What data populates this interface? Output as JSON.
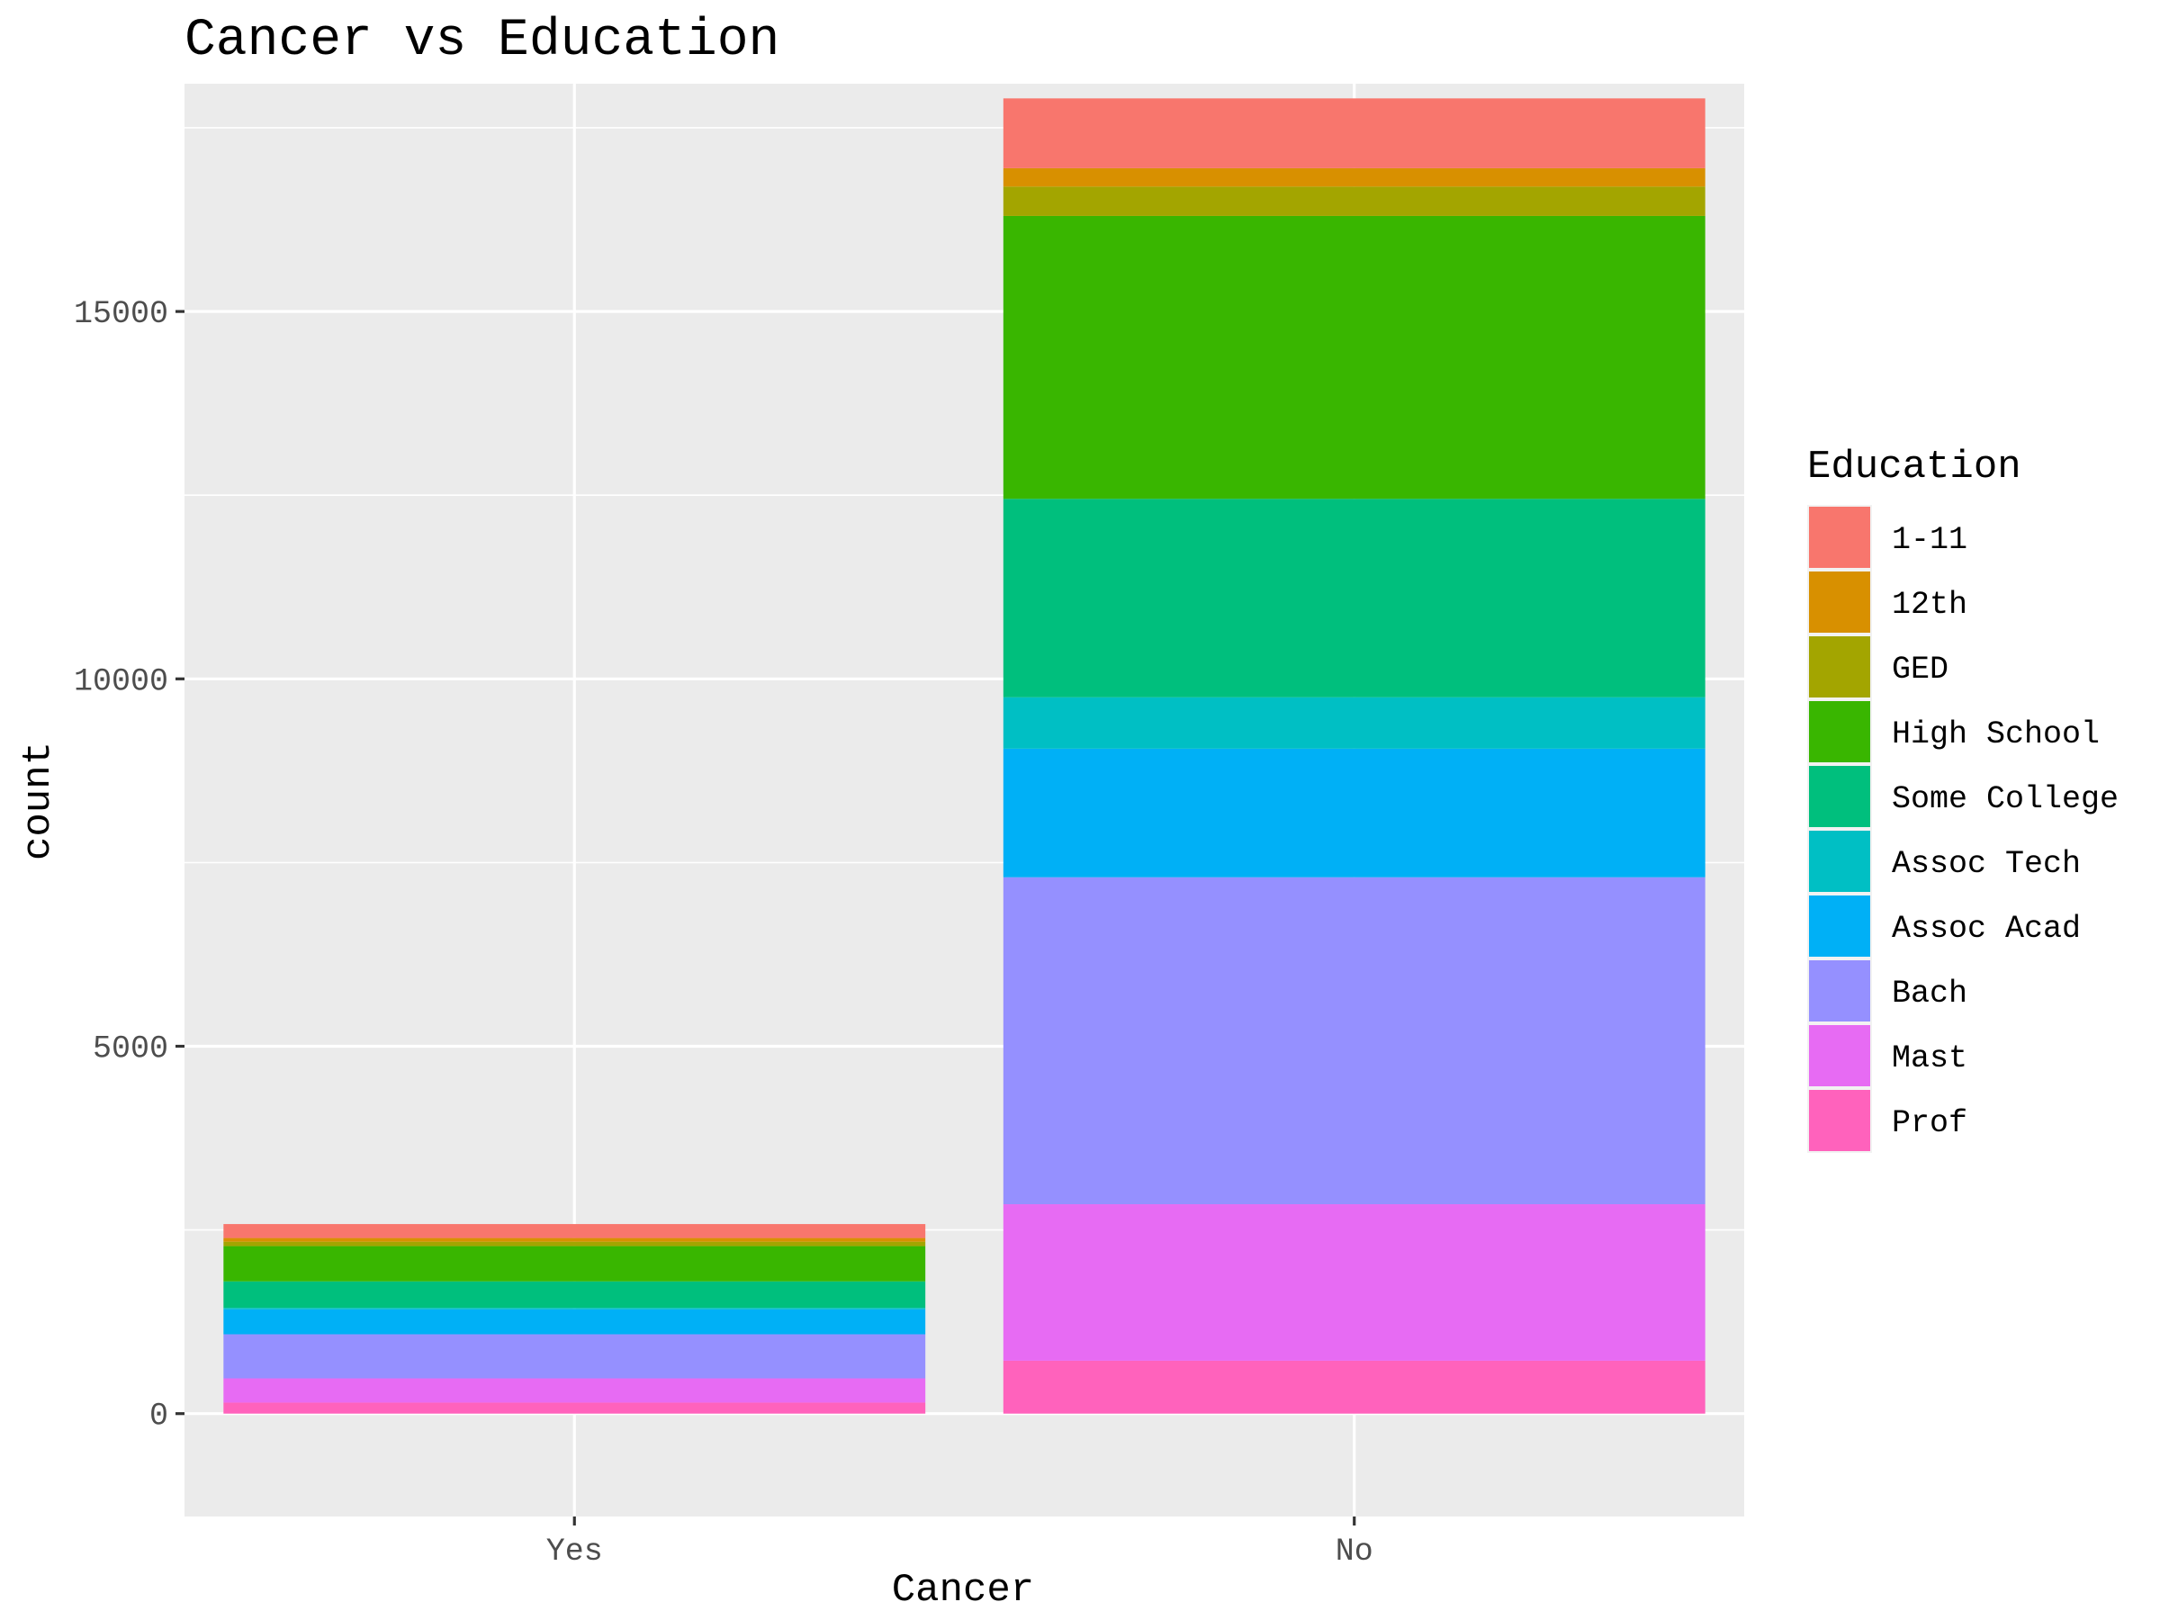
{
  "chart_data": {
    "type": "bar",
    "stacked": true,
    "title": "Cancer vs Education",
    "xlabel": "Cancer",
    "ylabel": "count",
    "categories": [
      "Yes",
      "No"
    ],
    "ylim": [
      -1400,
      18100
    ],
    "yticks": [
      0,
      5000,
      10000,
      15000
    ],
    "grid": true,
    "legend": {
      "title": "Education",
      "position": "right"
    },
    "series": [
      {
        "name": "1-11",
        "color": "#F8766D",
        "values": [
          190,
          950
        ]
      },
      {
        "name": "12th",
        "color": "#D89000",
        "values": [
          50,
          250
        ]
      },
      {
        "name": "GED",
        "color": "#A3A500",
        "values": [
          60,
          400
        ]
      },
      {
        "name": "High School",
        "color": "#39B600",
        "values": [
          480,
          3850
        ]
      },
      {
        "name": "Some College",
        "color": "#00BF7D",
        "values": [
          360,
          2700
        ]
      },
      {
        "name": "Assoc Tech",
        "color": "#00BFC4",
        "values": [
          20,
          700
        ]
      },
      {
        "name": "Assoc Acad",
        "color": "#00B0F6",
        "values": [
          340,
          1750
        ]
      },
      {
        "name": "Bach",
        "color": "#9590FF",
        "values": [
          600,
          4450
        ]
      },
      {
        "name": "Mast",
        "color": "#E76BF3",
        "values": [
          330,
          2130
        ]
      },
      {
        "name": "Prof",
        "color": "#FF62BC",
        "values": [
          150,
          720
        ]
      }
    ]
  }
}
